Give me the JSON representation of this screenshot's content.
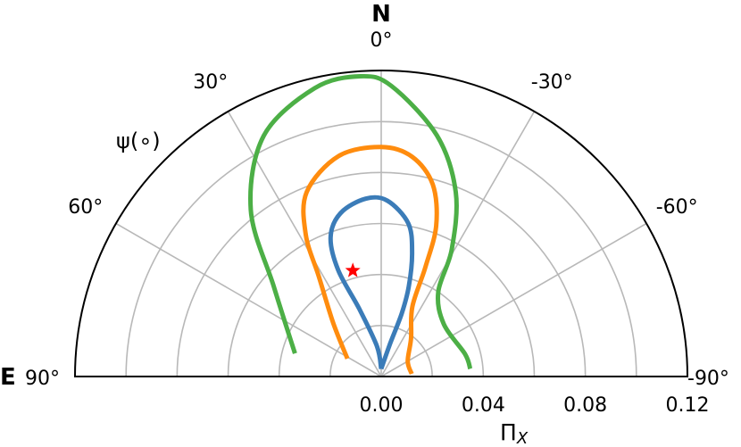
{
  "chart_data": {
    "type": "polar-half",
    "title": "",
    "north_label": "N",
    "east_label": "E",
    "angle_axis_label": "ψ(∘)",
    "radial_axis_label": "Π",
    "radial_axis_label_sub": "X",
    "angle_ticks": [
      {
        "deg": 0,
        "label": "0°"
      },
      {
        "deg": 30,
        "label": "30°"
      },
      {
        "deg": 60,
        "label": "60°"
      },
      {
        "deg": 90,
        "label": "90°"
      },
      {
        "deg": -30,
        "label": "-30°"
      },
      {
        "deg": -60,
        "label": "-60°"
      },
      {
        "deg": -90,
        "label": "-90°"
      }
    ],
    "radial_ticks": [
      {
        "value": 0.0,
        "label": "0.00"
      },
      {
        "value": 0.04,
        "label": "0.04"
      },
      {
        "value": 0.08,
        "label": "0.08"
      },
      {
        "value": 0.12,
        "label": "0.12"
      }
    ],
    "radial_gridlines": [
      0.02,
      0.04,
      0.06,
      0.08,
      0.1,
      0.12
    ],
    "angle_gridlines": [
      -60,
      -30,
      0,
      30,
      60
    ],
    "rlim": [
      0,
      0.12
    ],
    "grid": true,
    "colors": {
      "inner": "#3b7cb8",
      "middle": "#ff8c0e",
      "outer": "#4caf46",
      "marker": "#ff0000",
      "grid": "#b8b8b8"
    },
    "series": [
      {
        "color_key": "inner",
        "points": [
          {
            "psi": 0,
            "r": 0.003
          },
          {
            "psi": 8,
            "r": 0.012
          },
          {
            "psi": 18,
            "r": 0.028
          },
          {
            "psi": 22,
            "r": 0.045
          },
          {
            "psi": 20,
            "r": 0.058
          },
          {
            "psi": 14,
            "r": 0.066
          },
          {
            "psi": 5,
            "r": 0.07
          },
          {
            "psi": -2,
            "r": 0.069
          },
          {
            "psi": -10,
            "r": 0.061
          },
          {
            "psi": -14,
            "r": 0.05
          },
          {
            "psi": -17,
            "r": 0.037
          },
          {
            "psi": -18,
            "r": 0.026
          },
          {
            "psi": -15,
            "r": 0.013
          },
          {
            "psi": 0,
            "r": 0.003
          }
        ]
      },
      {
        "color_key": "middle",
        "points": [
          {
            "psi": 62,
            "r": 0.015
          },
          {
            "psi": 42,
            "r": 0.028
          },
          {
            "psi": 32,
            "r": 0.046
          },
          {
            "psi": 28,
            "r": 0.063
          },
          {
            "psi": 22,
            "r": 0.078
          },
          {
            "psi": 11,
            "r": 0.088
          },
          {
            "psi": 0,
            "r": 0.09
          },
          {
            "psi": -8,
            "r": 0.087
          },
          {
            "psi": -15,
            "r": 0.078
          },
          {
            "psi": -20,
            "r": 0.063
          },
          {
            "psi": -22,
            "r": 0.046
          },
          {
            "psi": -24,
            "r": 0.03
          },
          {
            "psi": -38,
            "r": 0.019
          },
          {
            "psi": -60,
            "r": 0.012
          },
          {
            "psi": -85,
            "r": 0.012
          }
        ]
      },
      {
        "color_key": "outer",
        "points": [
          {
            "psi": 75,
            "r": 0.035
          },
          {
            "psi": 50,
            "r": 0.055
          },
          {
            "psi": 38,
            "r": 0.083
          },
          {
            "psi": 26,
            "r": 0.105
          },
          {
            "psi": 13,
            "r": 0.116
          },
          {
            "psi": 4,
            "r": 0.118
          },
          {
            "psi": -2,
            "r": 0.114
          },
          {
            "psi": -13,
            "r": 0.097
          },
          {
            "psi": -22,
            "r": 0.078
          },
          {
            "psi": -29,
            "r": 0.057
          },
          {
            "psi": -34,
            "r": 0.04
          },
          {
            "psi": -50,
            "r": 0.032
          },
          {
            "psi": -75,
            "r": 0.034
          },
          {
            "psi": -85,
            "r": 0.035
          }
        ]
      }
    ],
    "marker": {
      "psi": 15,
      "r": 0.043,
      "symbol": "★"
    }
  }
}
